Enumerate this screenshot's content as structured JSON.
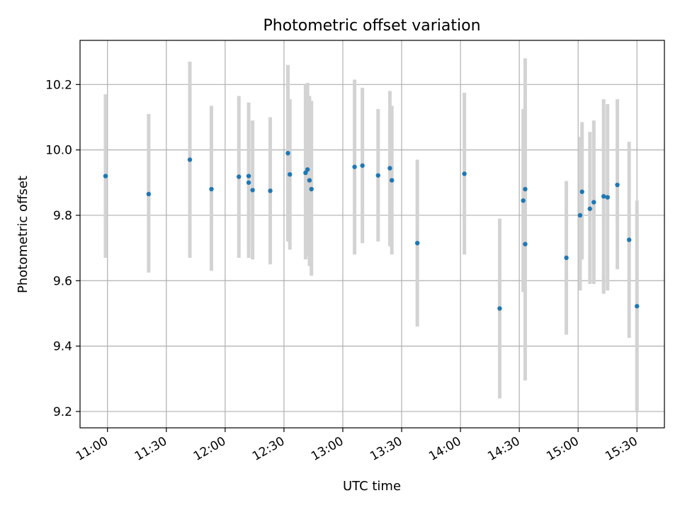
{
  "chart_data": {
    "type": "scatter",
    "title": "Photometric offset variation",
    "xlabel": "UTC time",
    "ylabel": "Photometric offset",
    "x_ticks": [
      "11:00",
      "11:30",
      "12:00",
      "12:30",
      "13:00",
      "13:30",
      "14:00",
      "14:30",
      "15:00",
      "15:30"
    ],
    "y_ticks": [
      "9.2",
      "9.4",
      "9.6",
      "9.8",
      "10.0",
      "10.2"
    ],
    "xlim": [
      "10:46",
      "15:44"
    ],
    "ylim": [
      9.15,
      10.335
    ],
    "grid": true,
    "colors": {
      "point": "#1f77b4",
      "errorbar": "#d3d3d3",
      "grid": "#b0b0b0"
    },
    "points": [
      {
        "x": "10:59",
        "y": 9.92,
        "ylow": 9.67,
        "yhigh": 10.17
      },
      {
        "x": "11:21",
        "y": 9.865,
        "ylow": 9.625,
        "yhigh": 10.11
      },
      {
        "x": "11:42",
        "y": 9.97,
        "ylow": 9.67,
        "yhigh": 10.27
      },
      {
        "x": "11:53",
        "y": 9.88,
        "ylow": 9.63,
        "yhigh": 10.135
      },
      {
        "x": "12:07",
        "y": 9.918,
        "ylow": 9.67,
        "yhigh": 10.165
      },
      {
        "x": "12:12",
        "y": 9.92,
        "ylow": 9.67,
        "yhigh": 10.145
      },
      {
        "x": "12:12",
        "y": 9.9,
        "ylow": 9.7,
        "yhigh": 10.09
      },
      {
        "x": "12:14",
        "y": 9.877,
        "ylow": 9.665,
        "yhigh": 10.09
      },
      {
        "x": "12:23",
        "y": 9.875,
        "ylow": 9.65,
        "yhigh": 10.1
      },
      {
        "x": "12:32",
        "y": 9.99,
        "ylow": 9.72,
        "yhigh": 10.26
      },
      {
        "x": "12:33",
        "y": 9.925,
        "ylow": 9.695,
        "yhigh": 10.155
      },
      {
        "x": "12:41",
        "y": 9.93,
        "ylow": 9.665,
        "yhigh": 10.2
      },
      {
        "x": "12:42",
        "y": 9.94,
        "ylow": 9.675,
        "yhigh": 10.205
      },
      {
        "x": "12:43",
        "y": 9.907,
        "ylow": 9.645,
        "yhigh": 10.165
      },
      {
        "x": "12:44",
        "y": 9.88,
        "ylow": 9.615,
        "yhigh": 10.15
      },
      {
        "x": "13:06",
        "y": 9.948,
        "ylow": 9.68,
        "yhigh": 10.215
      },
      {
        "x": "13:10",
        "y": 9.952,
        "ylow": 9.715,
        "yhigh": 10.19
      },
      {
        "x": "13:18",
        "y": 9.922,
        "ylow": 9.72,
        "yhigh": 10.125
      },
      {
        "x": "13:24",
        "y": 9.944,
        "ylow": 9.705,
        "yhigh": 10.18
      },
      {
        "x": "13:25",
        "y": 9.907,
        "ylow": 9.68,
        "yhigh": 10.135
      },
      {
        "x": "13:38",
        "y": 9.715,
        "ylow": 9.46,
        "yhigh": 9.97
      },
      {
        "x": "14:02",
        "y": 9.927,
        "ylow": 9.68,
        "yhigh": 10.175
      },
      {
        "x": "14:20",
        "y": 9.515,
        "ylow": 9.24,
        "yhigh": 9.79
      },
      {
        "x": "14:32",
        "y": 9.845,
        "ylow": 9.565,
        "yhigh": 10.125
      },
      {
        "x": "14:33",
        "y": 9.88,
        "ylow": 9.6,
        "yhigh": 10.165
      },
      {
        "x": "14:33",
        "y": 9.712,
        "ylow": 9.295,
        "yhigh": 10.28
      },
      {
        "x": "14:54",
        "y": 9.67,
        "ylow": 9.435,
        "yhigh": 9.905
      },
      {
        "x": "15:01",
        "y": 9.8,
        "ylow": 9.57,
        "yhigh": 10.04
      },
      {
        "x": "15:02",
        "y": 9.872,
        "ylow": 9.665,
        "yhigh": 10.085
      },
      {
        "x": "15:06",
        "y": 9.82,
        "ylow": 9.59,
        "yhigh": 10.055
      },
      {
        "x": "15:08",
        "y": 9.84,
        "ylow": 9.59,
        "yhigh": 10.09
      },
      {
        "x": "15:13",
        "y": 9.858,
        "ylow": 9.56,
        "yhigh": 10.155
      },
      {
        "x": "15:15",
        "y": 9.855,
        "ylow": 9.57,
        "yhigh": 10.14
      },
      {
        "x": "15:20",
        "y": 9.893,
        "ylow": 9.635,
        "yhigh": 10.155
      },
      {
        "x": "15:26",
        "y": 9.725,
        "ylow": 9.425,
        "yhigh": 10.025
      },
      {
        "x": "15:30",
        "y": 9.522,
        "ylow": 9.2,
        "yhigh": 9.845
      }
    ]
  }
}
